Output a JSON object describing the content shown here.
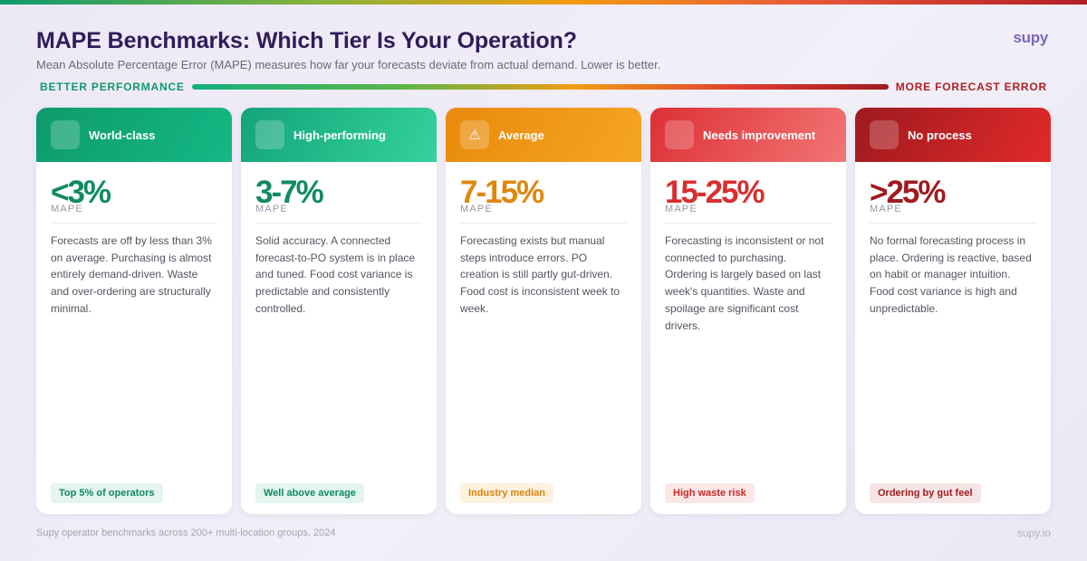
{
  "header": {
    "title": "MAPE Benchmarks: Which Tier Is Your Operation?",
    "subtitle": "Mean Absolute Percentage Error (MAPE) measures how far your forecasts deviate from actual demand. Lower is better.",
    "brand": "supy"
  },
  "scale": {
    "left_label": "BETTER PERFORMANCE",
    "right_label": "MORE FORECAST ERROR"
  },
  "cards": [
    {
      "name": "World-class",
      "icon": "trophy-icon",
      "icon_glyph": "",
      "value": "<3%",
      "metric_label": "MAPE",
      "description": "Forecasts are off by less than 3% on average. Purchasing is almost entirely demand-driven. Waste and over-ordering are structurally minimal.",
      "badge": "Top 5% of operators",
      "colors": {
        "head_from": "#0e9a6c",
        "head_to": "#14b884",
        "value": "#0f8a62",
        "badge_bg": "#e3f5ee",
        "badge_text": "#0f8a62"
      }
    },
    {
      "name": "High-performing",
      "icon": "chart-up-icon",
      "icon_glyph": "",
      "value": "3-7%",
      "metric_label": "MAPE",
      "description": "Solid accuracy. A connected forecast-to-PO system is in place and tuned. Food cost variance is predictable and consistently controlled.",
      "badge": "Well above average",
      "colors": {
        "head_from": "#14a37a",
        "head_to": "#34d39b",
        "value": "#118a64",
        "badge_bg": "#e3f5ee",
        "badge_text": "#0f8a62"
      }
    },
    {
      "name": "Average",
      "icon": "warning-icon",
      "icon_glyph": "⚠",
      "value": "7-15%",
      "metric_label": "MAPE",
      "description": "Forecasting exists but manual steps introduce errors. PO creation is still partly gut-driven. Food cost is inconsistent week to week.",
      "badge": "Industry median",
      "colors": {
        "head_from": "#e98a0c",
        "head_to": "#f5a623",
        "value": "#df870d",
        "badge_bg": "#fdf1e0",
        "badge_text": "#d9830b"
      }
    },
    {
      "name": "Needs improvement",
      "icon": "alert-circle-icon",
      "icon_glyph": "",
      "value": "15-25%",
      "metric_label": "MAPE",
      "description": "Forecasting is inconsistent or not connected to purchasing. Ordering is largely based on last week's quantities. Waste and spoilage are significant cost drivers.",
      "badge": "High waste risk",
      "colors": {
        "head_from": "#dc3035",
        "head_to": "#f27575",
        "value": "#d72f2f",
        "badge_bg": "#fbe6e6",
        "badge_text": "#c62828"
      }
    },
    {
      "name": "No process",
      "icon": "cross-circle-icon",
      "icon_glyph": "",
      "value": ">25%",
      "metric_label": "MAPE",
      "description": "No formal forecasting process in place. Ordering is reactive, based on habit or manager intuition. Food cost variance is high and unpredictable.",
      "badge": "Ordering by gut feel",
      "colors": {
        "head_from": "#9e1a1f",
        "head_to": "#e12a2a",
        "value": "#9e1b1f",
        "badge_bg": "#f7e4e4",
        "badge_text": "#9e1b1f"
      }
    }
  ],
  "footer": {
    "source": "Supy operator benchmarks across 200+ multi-location groups, 2024",
    "site": "supy.io"
  }
}
